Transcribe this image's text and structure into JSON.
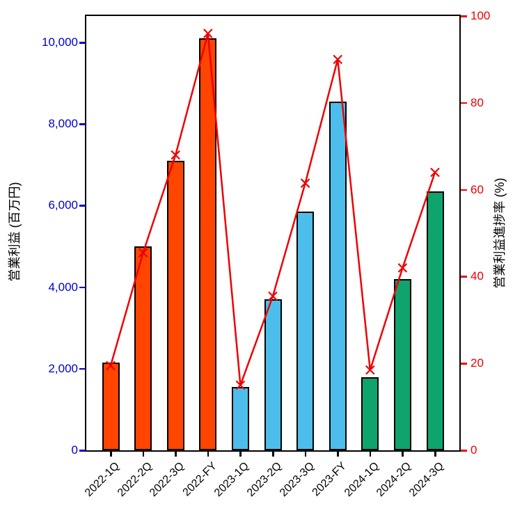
{
  "chart_data": {
    "type": "bar+line",
    "title": "",
    "categories": [
      "2022-1Q",
      "2022-2Q",
      "2022-3Q",
      "2022-FY",
      "2023-1Q",
      "2023-2Q",
      "2023-3Q",
      "2023-FY",
      "2024-1Q",
      "2024-2Q",
      "2024-3Q"
    ],
    "series": [
      {
        "name": "営業利益",
        "type": "bar",
        "axis": "left",
        "values": [
          2150,
          5000,
          7100,
          10100,
          1550,
          3700,
          5850,
          8550,
          1800,
          4200,
          6350
        ],
        "colors": [
          "#FF4500",
          "#FF4500",
          "#FF4500",
          "#FF4500",
          "#4DBEEB",
          "#4DBEEB",
          "#4DBEEB",
          "#4DBEEB",
          "#0FA36E",
          "#0FA36E",
          "#0FA36E"
        ],
        "edge_color": "#000000"
      },
      {
        "name": "営業利益進捗率",
        "type": "line",
        "axis": "right",
        "values": [
          19.5,
          45.5,
          68,
          96,
          15,
          35.5,
          61.5,
          90,
          18.5,
          42,
          64
        ],
        "color": "#EE0000",
        "marker": "x"
      }
    ],
    "left_axis": {
      "label": "営業利益 (百万円)",
      "tick_labels": [
        "0",
        "2,000",
        "4,000",
        "6,000",
        "8,000",
        "10,000"
      ],
      "tick_values": [
        0,
        2000,
        4000,
        6000,
        8000,
        10000
      ],
      "range": [
        0,
        10650
      ],
      "color": "#0000CD"
    },
    "right_axis": {
      "label": "営業利益進捗率 (%)",
      "tick_labels": [
        "0",
        "20",
        "40",
        "60",
        "80",
        "100"
      ],
      "tick_values": [
        0,
        20,
        40,
        60,
        80,
        100
      ],
      "range": [
        0,
        100
      ],
      "color": "#EE0000"
    },
    "x_axis": {
      "tick_label_rotation_deg": 45,
      "color": "#000000"
    },
    "grid": false,
    "legend": "none"
  }
}
